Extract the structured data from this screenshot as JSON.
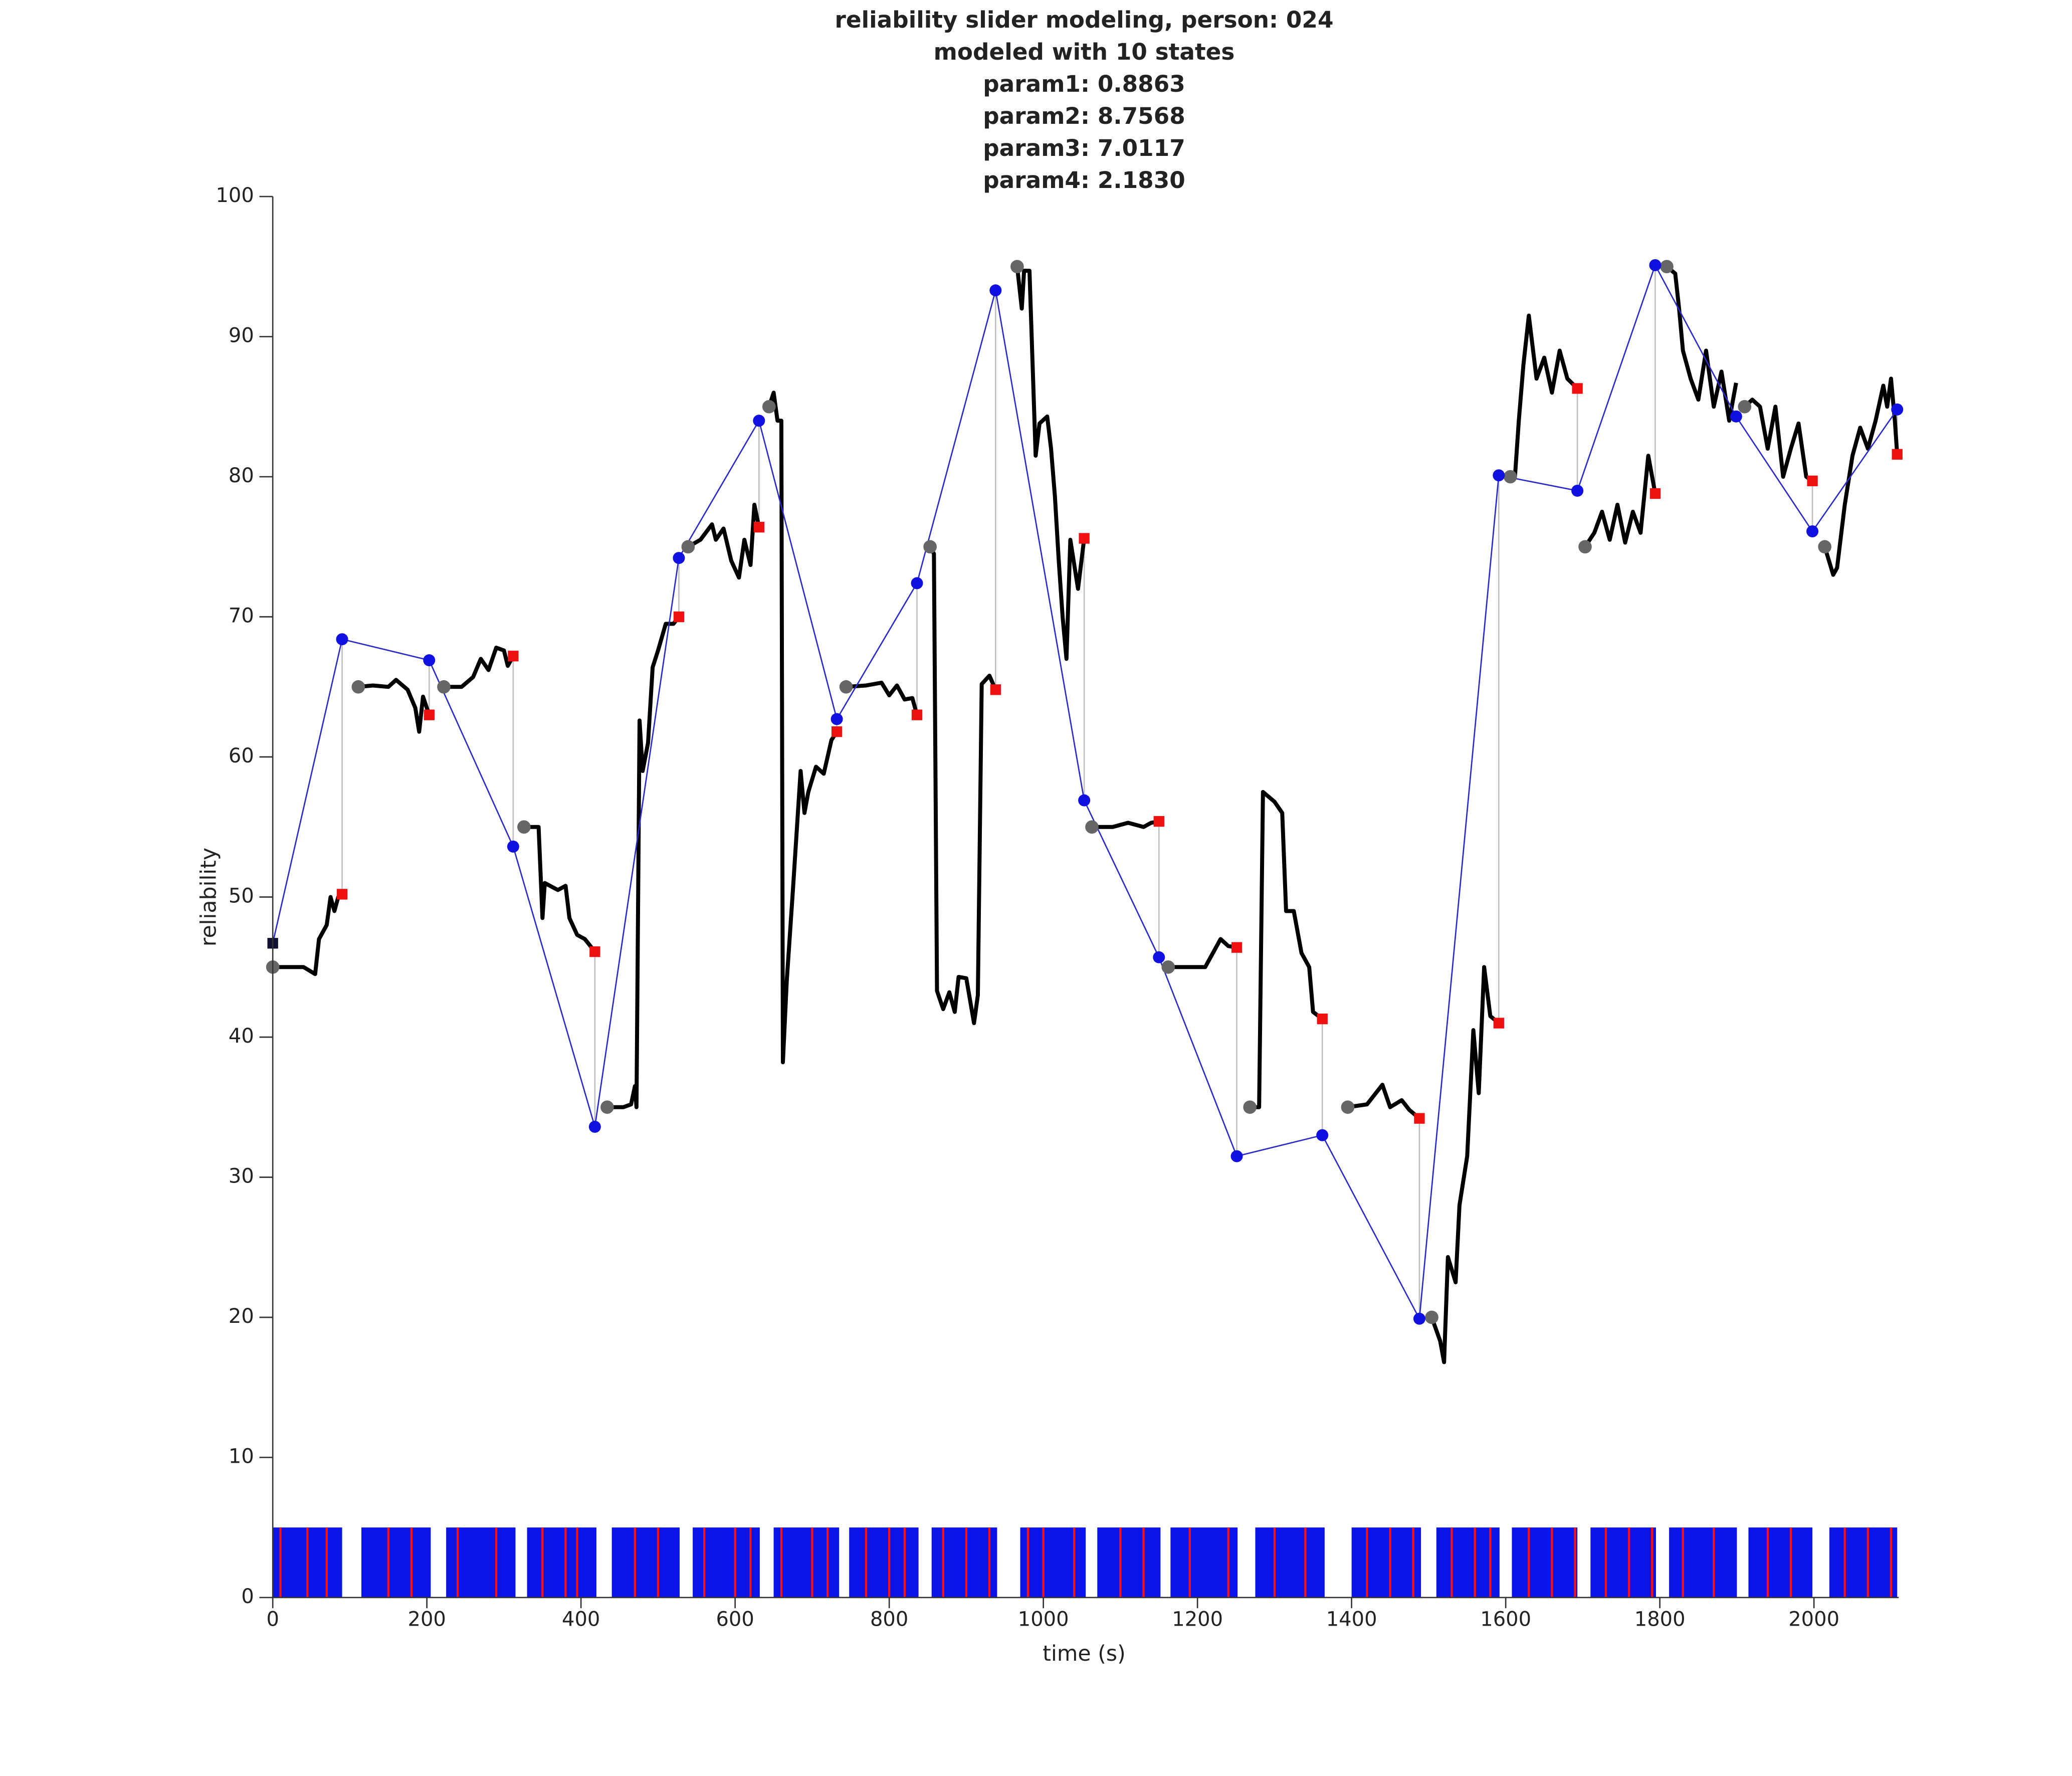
{
  "chart_data": {
    "type": "line",
    "title": [
      "reliability slider modeling, person: 024",
      "modeled with 10 states",
      "param1: 0.8863",
      "param2: 8.7568",
      "param3: 7.0117",
      "param4: 2.1830"
    ],
    "xlabel": "time (s)",
    "ylabel": "reliability",
    "xlim": [
      0,
      2110
    ],
    "ylim": [
      0,
      100
    ],
    "xticks": [
      0,
      200,
      400,
      600,
      800,
      1000,
      1200,
      1400,
      1600,
      1800,
      2000
    ],
    "yticks": [
      0,
      10,
      20,
      30,
      40,
      50,
      60,
      70,
      80,
      90,
      100
    ],
    "grid": false,
    "trace": {
      "color": "#000000",
      "x": [
        0,
        20,
        40,
        55,
        60,
        70,
        75,
        80,
        85,
        90,
        null,
        111,
        130,
        150,
        160,
        175,
        185,
        190,
        195,
        203,
        null,
        222,
        245,
        260,
        270,
        280,
        290,
        300,
        305,
        312,
        null,
        326,
        345,
        350,
        353,
        370,
        380,
        385,
        395,
        405,
        418,
        null,
        434,
        455,
        465,
        470,
        472,
        476,
        480,
        487,
        493,
        500,
        510,
        520,
        527,
        null,
        539,
        555,
        570,
        575,
        585,
        595,
        605,
        612,
        620,
        625,
        631,
        null,
        644,
        650,
        655,
        660,
        662,
        667,
        675,
        685,
        690,
        695,
        705,
        715,
        725,
        732,
        null,
        744,
        770,
        790,
        800,
        810,
        820,
        830,
        836,
        null,
        853,
        858,
        862,
        870,
        878,
        885,
        890,
        900,
        910,
        915,
        920,
        930,
        938,
        null,
        966,
        972,
        975,
        982,
        990,
        995,
        1005,
        1010,
        1015,
        1020,
        1025,
        1030,
        1035,
        1045,
        1053,
        null,
        1063,
        1090,
        1110,
        1130,
        1140,
        1150,
        null,
        1162,
        1190,
        1210,
        1230,
        1240,
        1251,
        null,
        1268,
        1280,
        1285,
        1300,
        1310,
        1315,
        1325,
        1335,
        1345,
        1350,
        1362,
        null,
        1395,
        1420,
        1440,
        1450,
        1465,
        1475,
        1488,
        null,
        1504,
        1515,
        1520,
        1525,
        1535,
        1540,
        1550,
        1558,
        1565,
        1572,
        1580,
        1591,
        null,
        1606,
        1612,
        1617,
        1623,
        1630,
        1640,
        1650,
        1660,
        1670,
        1680,
        1693,
        null,
        1703,
        1715,
        1725,
        1735,
        1745,
        1755,
        1765,
        1775,
        1785,
        1794,
        null,
        1809,
        1820,
        1825,
        1830,
        1840,
        1850,
        1860,
        1870,
        1880,
        1890,
        1899,
        null,
        1910,
        1920,
        1930,
        1940,
        1950,
        1960,
        1970,
        1980,
        1990,
        1998,
        null,
        2014,
        2025,
        2030,
        2040,
        2050,
        2060,
        2070,
        2080,
        2090,
        2095,
        2100,
        2105,
        2108
      ],
      "values": [
        45,
        45,
        45,
        44.5,
        47,
        48,
        50,
        49,
        50,
        50.2,
        null,
        65,
        65.1,
        65,
        65.5,
        64.8,
        63.5,
        61.8,
        64.3,
        63,
        null,
        65,
        65,
        65.7,
        67,
        66.2,
        67.8,
        67.6,
        66.5,
        67.2,
        null,
        55,
        55,
        48.5,
        51,
        50.5,
        50.8,
        48.5,
        47.3,
        47,
        46.1,
        null,
        35,
        35,
        35.2,
        36.5,
        35,
        62.6,
        59,
        61,
        66.4,
        67.6,
        69.5,
        69.5,
        70,
        null,
        75,
        75.5,
        76.6,
        75.5,
        76.3,
        74,
        72.8,
        75.5,
        73.7,
        78,
        76.4,
        null,
        85,
        86,
        84,
        84,
        38.2,
        44,
        50.5,
        59,
        56,
        57.5,
        59.3,
        58.8,
        61.2,
        61.8,
        null,
        65,
        65.1,
        65.3,
        64.4,
        65.1,
        64.1,
        64.2,
        63,
        null,
        75,
        74.5,
        43.3,
        42,
        43.2,
        41.8,
        44.3,
        44.2,
        41,
        43,
        65.2,
        65.8,
        64.8,
        null,
        95,
        92,
        94.7,
        94.7,
        81.5,
        83.8,
        84.3,
        82,
        78.6,
        74,
        70,
        67,
        75.5,
        72,
        75.6,
        null,
        55,
        55,
        55.3,
        55,
        55.3,
        55.4,
        null,
        45,
        45,
        45,
        47,
        46.5,
        46.4,
        null,
        35,
        35,
        57.5,
        56.8,
        56,
        49,
        49,
        46,
        45,
        41.8,
        41.3,
        null,
        35,
        35.2,
        36.6,
        35,
        35.5,
        34.8,
        34.2,
        null,
        20,
        18.3,
        16.8,
        24.3,
        22.5,
        28,
        31.5,
        40.5,
        36,
        45,
        41.5,
        41,
        null,
        80,
        80,
        84,
        88,
        91.5,
        87,
        88.5,
        86,
        89,
        87,
        86.3,
        null,
        75,
        76,
        77.5,
        75.5,
        78,
        75.3,
        77.5,
        76,
        81.5,
        78.8,
        null,
        95,
        94.5,
        92,
        89,
        87,
        85.5,
        89,
        85,
        87.5,
        84,
        86.7,
        null,
        85,
        85.5,
        85,
        82,
        85,
        80,
        82,
        83.8,
        80,
        79.7,
        null,
        75,
        73,
        73.5,
        78,
        81.5,
        83.5,
        82,
        84,
        86.5,
        85,
        87,
        84,
        81.6
      ]
    },
    "segment_starts": {
      "color": "#666666",
      "x": [
        0,
        111,
        222,
        326,
        434,
        539,
        644,
        744,
        853,
        966,
        1063,
        1162,
        1268,
        1395,
        1504,
        1606,
        1703,
        1809,
        1910,
        2014
      ],
      "values": [
        45,
        65,
        65,
        55,
        35,
        75,
        85,
        65,
        75,
        95,
        55,
        45,
        35,
        35,
        20,
        80,
        75,
        95,
        85,
        75
      ]
    },
    "model": {
      "color": "#1010e0",
      "line_color": "#2a2ac8",
      "start_color": "#111133",
      "x": [
        0,
        90,
        203,
        312,
        418,
        527,
        631,
        732,
        836,
        938,
        1053,
        1150,
        1251,
        1362,
        1488,
        1591,
        1693,
        1794,
        1899,
        1998,
        2108
      ],
      "values": [
        46.7,
        68.4,
        66.9,
        53.6,
        33.6,
        74.2,
        84,
        62.7,
        72.4,
        93.3,
        56.9,
        45.7,
        31.5,
        33,
        19.9,
        80.1,
        79,
        95.1,
        84.3,
        76.1,
        84.8
      ],
      "predicted": [
        null,
        50.2,
        63,
        67.2,
        46.1,
        70,
        76.4,
        61.8,
        63,
        64.8,
        75.6,
        55.4,
        46.4,
        41.3,
        34.2,
        41,
        86.3,
        78.8,
        null,
        79.7,
        81.6
      ],
      "predicted_color": "#ee1111",
      "connector_color": "#c0c0c0"
    },
    "raster": {
      "top": 5,
      "color": "#0a14e6",
      "event_color": "#ff1010",
      "blocks": [
        [
          0,
          90
        ],
        [
          115,
          205
        ],
        [
          225,
          315
        ],
        [
          330,
          420
        ],
        [
          440,
          528
        ],
        [
          545,
          632
        ],
        [
          650,
          735
        ],
        [
          748,
          838
        ],
        [
          855,
          940
        ],
        [
          970,
          1055
        ],
        [
          1070,
          1152
        ],
        [
          1165,
          1252
        ],
        [
          1275,
          1365
        ],
        [
          1400,
          1490
        ],
        [
          1510,
          1592
        ],
        [
          1608,
          1693
        ],
        [
          1710,
          1795
        ],
        [
          1812,
          1900
        ],
        [
          1915,
          1998
        ],
        [
          2020,
          2108
        ]
      ],
      "events": [
        10,
        45,
        70,
        150,
        180,
        240,
        290,
        350,
        380,
        395,
        470,
        500,
        560,
        600,
        620,
        660,
        700,
        720,
        770,
        800,
        820,
        870,
        900,
        930,
        980,
        1000,
        1040,
        1100,
        1130,
        1190,
        1240,
        1300,
        1340,
        1420,
        1450,
        1480,
        1530,
        1560,
        1580,
        1630,
        1660,
        1690,
        1730,
        1760,
        1790,
        1830,
        1870,
        1940,
        1970,
        2040,
        2070,
        2100
      ]
    }
  }
}
